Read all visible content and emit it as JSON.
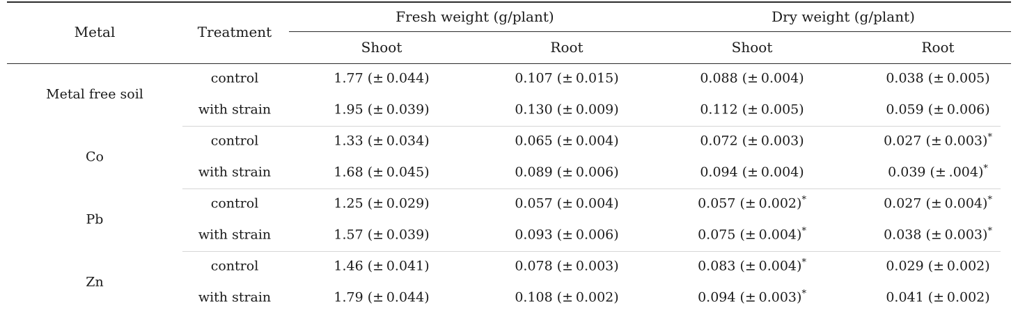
{
  "header": {
    "metal": "Metal",
    "treatment": "Treatment",
    "fresh_weight": "Fresh weight (g/plant)",
    "dry_weight": "Dry weight (g/plant)",
    "fresh_shoot": "Shoot",
    "fresh_root": "Root",
    "dry_shoot": "Shoot",
    "dry_root": "Root"
  },
  "groups": [
    {
      "metal": "Metal free soil",
      "rows": [
        {
          "treatment": "control",
          "cells": [
            {
              "text": "1.77 (± 0.044)",
              "mark": ""
            },
            {
              "text": "0.107 (± 0.015)",
              "mark": ""
            },
            {
              "text": "0.088 (± 0.004)",
              "mark": ""
            },
            {
              "text": "0.038 (± 0.005)",
              "mark": ""
            }
          ]
        },
        {
          "treatment": "with strain",
          "cells": [
            {
              "text": "1.95 (± 0.039)",
              "mark": ""
            },
            {
              "text": "0.130 (± 0.009)",
              "mark": ""
            },
            {
              "text": "0.112 (± 0.005)",
              "mark": ""
            },
            {
              "text": "0.059 (± 0.006)",
              "mark": ""
            }
          ]
        }
      ]
    },
    {
      "metal": "Co",
      "rows": [
        {
          "treatment": "control",
          "cells": [
            {
              "text": "1.33 (± 0.034)",
              "mark": ""
            },
            {
              "text": "0.065 (± 0.004)",
              "mark": ""
            },
            {
              "text": "0.072 (± 0.003)",
              "mark": ""
            },
            {
              "text": "0.027 (± 0.003)",
              "mark": "*"
            }
          ]
        },
        {
          "treatment": "with strain",
          "cells": [
            {
              "text": "1.68 (± 0.045)",
              "mark": ""
            },
            {
              "text": "0.089 (± 0.006)",
              "mark": ""
            },
            {
              "text": "0.094 (± 0.004)",
              "mark": ""
            },
            {
              "text": "0.039 (± .004)",
              "mark": "*"
            }
          ]
        }
      ]
    },
    {
      "metal": "Pb",
      "rows": [
        {
          "treatment": "control",
          "cells": [
            {
              "text": "1.25 (± 0.029)",
              "mark": ""
            },
            {
              "text": "0.057 (± 0.004)",
              "mark": ""
            },
            {
              "text": "0.057 (± 0.002)",
              "mark": "*"
            },
            {
              "text": "0.027 (± 0.004)",
              "mark": "*"
            }
          ]
        },
        {
          "treatment": "with strain",
          "cells": [
            {
              "text": "1.57 (± 0.039)",
              "mark": ""
            },
            {
              "text": "0.093 (± 0.006)",
              "mark": ""
            },
            {
              "text": "0.075 (± 0.004)",
              "mark": "*"
            },
            {
              "text": "0.038 (± 0.003)",
              "mark": "*"
            }
          ]
        }
      ]
    },
    {
      "metal": "Zn",
      "rows": [
        {
          "treatment": "control",
          "cells": [
            {
              "text": "1.46 (± 0.041)",
              "mark": ""
            },
            {
              "text": "0.078 (± 0.003)",
              "mark": ""
            },
            {
              "text": "0.083 (± 0.004)",
              "mark": "*"
            },
            {
              "text": "0.029 (± 0.002)",
              "mark": ""
            }
          ]
        },
        {
          "treatment": "with strain",
          "cells": [
            {
              "text": "1.79 (± 0.044)",
              "mark": ""
            },
            {
              "text": "0.108 (± 0.002)",
              "mark": ""
            },
            {
              "text": "0.094 (± 0.003)",
              "mark": "*"
            },
            {
              "text": "0.041 (± 0.002)",
              "mark": ""
            }
          ]
        }
      ]
    }
  ]
}
